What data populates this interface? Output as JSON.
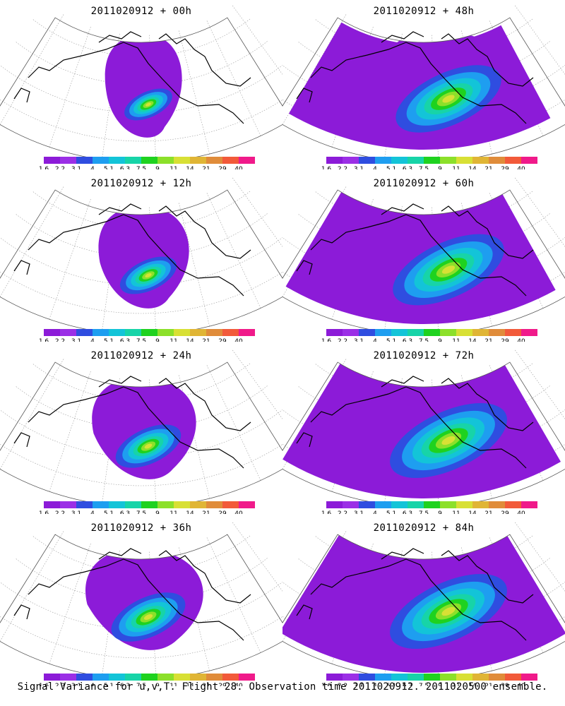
{
  "panels": [
    {
      "title": "2011020912 + 00h",
      "col": 0,
      "row": 0,
      "spread": 0.55,
      "peak": 0.7,
      "stage": 0
    },
    {
      "title": "2011020912 + 12h",
      "col": 0,
      "row": 1,
      "spread": 0.65,
      "peak": 0.7,
      "stage": 1
    },
    {
      "title": "2011020912 + 24h",
      "col": 0,
      "row": 2,
      "spread": 0.75,
      "peak": 0.72,
      "stage": 2
    },
    {
      "title": "2011020912 + 36h",
      "col": 0,
      "row": 3,
      "spread": 0.85,
      "peak": 0.75,
      "stage": 3
    },
    {
      "title": "2011020912 + 48h",
      "col": 1,
      "row": 0,
      "spread": 0.9,
      "peak": 0.72,
      "stage": 4
    },
    {
      "title": "2011020912 + 60h",
      "col": 1,
      "row": 1,
      "spread": 0.95,
      "peak": 0.65,
      "stage": 5
    },
    {
      "title": "2011020912 + 72h",
      "col": 1,
      "row": 2,
      "spread": 1.0,
      "peak": 0.65,
      "stage": 6
    },
    {
      "title": "2011020912 + 84h",
      "col": 1,
      "row": 3,
      "spread": 1.0,
      "peak": 0.62,
      "stage": 7
    }
  ],
  "colorbar": {
    "labels": [
      "1.6",
      "2.2",
      "3.1",
      "4",
      "5.1",
      "6.3",
      "7.5",
      "9",
      "11",
      "14",
      "21",
      "29",
      "40"
    ],
    "colors": [
      "#8c1bd8",
      "#9b2fe6",
      "#2f4de0",
      "#1e9ef0",
      "#13c4d8",
      "#17d4a8",
      "#1fd21f",
      "#8ce02a",
      "#d8e035",
      "#e0b535",
      "#e08c3a",
      "#f25a3a",
      "#f01a8a"
    ]
  },
  "footer": "Signal Variance for u,v,T. Flight 28. Observation time 2011020912. 2011020500 ensemble."
}
